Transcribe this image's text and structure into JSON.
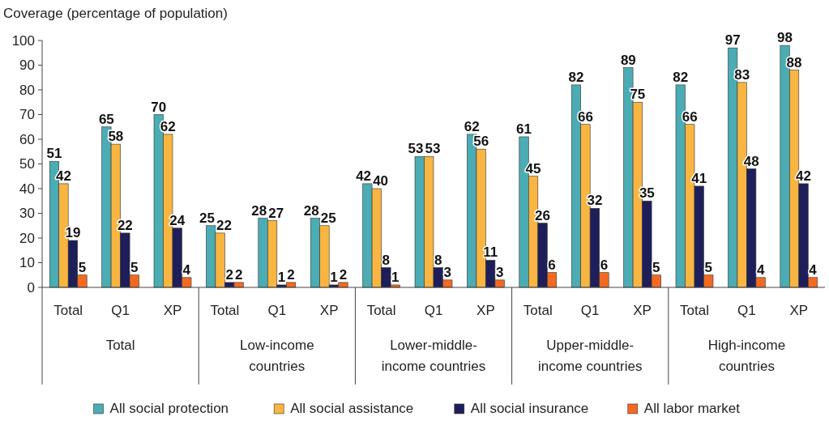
{
  "chart_data": {
    "type": "bar",
    "ylabel": "Coverage (percentage of population)",
    "categories": [
      "Total",
      "Q1",
      "XP",
      "Total",
      "Q1",
      "XP",
      "Total",
      "Q1",
      "XP",
      "Total",
      "Q1",
      "XP",
      "Total",
      "Q1",
      "XP"
    ],
    "annotations": [
      "Total",
      "Low-income countries",
      "Lower-middle-income countries",
      "Upper-middle-income countries",
      "High-income countries"
    ],
    "series": [
      {
        "name": "All social protection",
        "color": "#4bacb4",
        "values": [
          51,
          65,
          70,
          25,
          28,
          28,
          42,
          53,
          62,
          61,
          82,
          89,
          82,
          97,
          98
        ]
      },
      {
        "name": "All social assistance",
        "color": "#f8b541",
        "values": [
          42,
          58,
          62,
          22,
          27,
          25,
          40,
          53,
          56,
          45,
          66,
          75,
          66,
          83,
          88
        ]
      },
      {
        "name": "All social insurance",
        "color": "#1e1f5a",
        "values": [
          19,
          22,
          24,
          2,
          1,
          1,
          8,
          8,
          11,
          26,
          32,
          35,
          41,
          48,
          42
        ]
      },
      {
        "name": "All labor market",
        "color": "#f26a21",
        "values": [
          5,
          5,
          4,
          2,
          2,
          2,
          1,
          3,
          3,
          6,
          6,
          5,
          5,
          4,
          4
        ]
      }
    ],
    "ylim": [
      0,
      100
    ],
    "yticks": [
      0,
      10,
      20,
      30,
      40,
      50,
      60,
      70,
      80,
      90,
      100
    ],
    "data_labels": true,
    "grid": false,
    "legend": "bottom"
  }
}
